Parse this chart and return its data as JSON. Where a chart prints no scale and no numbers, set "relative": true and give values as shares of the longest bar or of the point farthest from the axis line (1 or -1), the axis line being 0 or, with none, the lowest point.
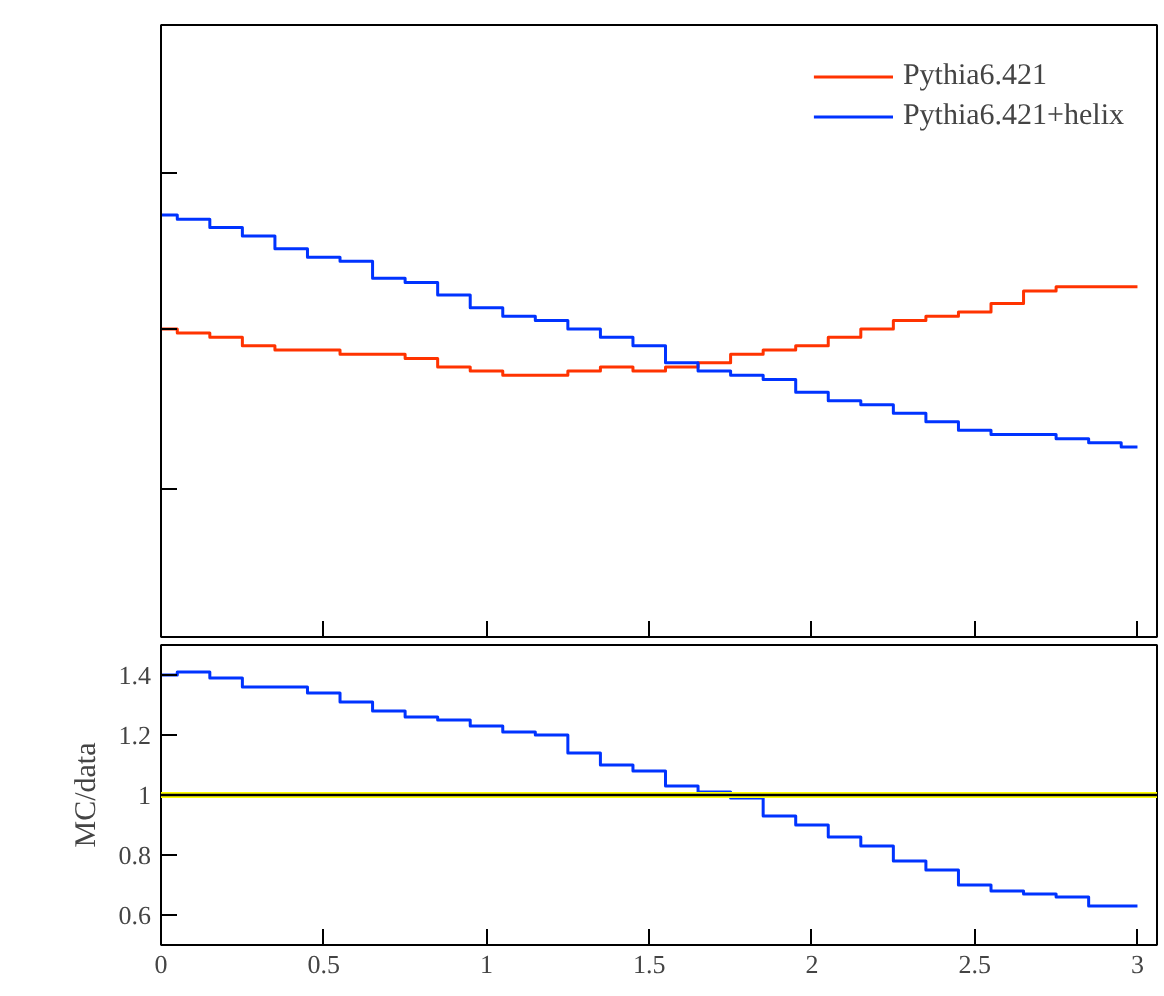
{
  "chart_data": [
    {
      "type": "step",
      "relative": true,
      "x": [
        0,
        0.1,
        0.2,
        0.3,
        0.4,
        0.5,
        0.6,
        0.7,
        0.8,
        0.9,
        1.0,
        1.1,
        1.2,
        1.3,
        1.4,
        1.5,
        1.6,
        1.7,
        1.8,
        1.9,
        2.0,
        2.1,
        2.2,
        2.3,
        2.4,
        2.5,
        2.6,
        2.7,
        2.8,
        2.9,
        3.0
      ],
      "series": [
        {
          "name": "Pythia6.421",
          "color": "#ff3300",
          "values": [
            0.73,
            0.72,
            0.71,
            0.69,
            0.68,
            0.68,
            0.67,
            0.67,
            0.66,
            0.64,
            0.63,
            0.62,
            0.62,
            0.63,
            0.64,
            0.63,
            0.64,
            0.65,
            0.67,
            0.68,
            0.69,
            0.71,
            0.73,
            0.75,
            0.76,
            0.77,
            0.79,
            0.82,
            0.83,
            0.83,
            0.83
          ]
        },
        {
          "name": "Pythia6.421+helix",
          "color": "#0033ff",
          "values": [
            1.0,
            0.99,
            0.97,
            0.95,
            0.92,
            0.9,
            0.89,
            0.85,
            0.84,
            0.81,
            0.78,
            0.76,
            0.75,
            0.73,
            0.71,
            0.69,
            0.65,
            0.63,
            0.62,
            0.61,
            0.58,
            0.56,
            0.55,
            0.53,
            0.51,
            0.49,
            0.48,
            0.48,
            0.47,
            0.46,
            0.45
          ]
        }
      ],
      "xlim": [
        0,
        3.06
      ],
      "xticks": [
        0,
        0.5,
        1,
        1.5,
        2,
        2.5,
        3
      ],
      "tick_labels": false,
      "legend": "top right",
      "grid": false
    },
    {
      "type": "step",
      "ylabel": "MC/data",
      "x": [
        0,
        0.1,
        0.2,
        0.3,
        0.4,
        0.5,
        0.6,
        0.7,
        0.8,
        0.9,
        1.0,
        1.1,
        1.2,
        1.3,
        1.4,
        1.5,
        1.6,
        1.7,
        1.8,
        1.9,
        2.0,
        2.1,
        2.2,
        2.3,
        2.4,
        2.5,
        2.6,
        2.7,
        2.8,
        2.9,
        3.0
      ],
      "series": [
        {
          "color": "#0033ff",
          "values": [
            1.4,
            1.41,
            1.39,
            1.36,
            1.36,
            1.34,
            1.31,
            1.28,
            1.26,
            1.25,
            1.23,
            1.21,
            1.2,
            1.14,
            1.1,
            1.08,
            1.03,
            1.01,
            0.99,
            0.93,
            0.9,
            0.86,
            0.83,
            0.78,
            0.75,
            0.7,
            0.68,
            0.67,
            0.66,
            0.63,
            0.63
          ]
        }
      ],
      "xlim": [
        0,
        3.06
      ],
      "xticks": [
        0,
        0.5,
        1,
        1.5,
        2,
        2.5,
        3
      ],
      "ylim": [
        0.5,
        1.5
      ],
      "yticks": [
        0.6,
        0.8,
        1,
        1.2,
        1.4
      ],
      "bands": [
        {
          "axis": "y",
          "from": 0.99,
          "to": 1.01,
          "color": "#ffff00"
        }
      ],
      "ref_lines": [
        {
          "axis": "y",
          "value": 1,
          "color": "#000000"
        }
      ],
      "grid": false
    }
  ]
}
